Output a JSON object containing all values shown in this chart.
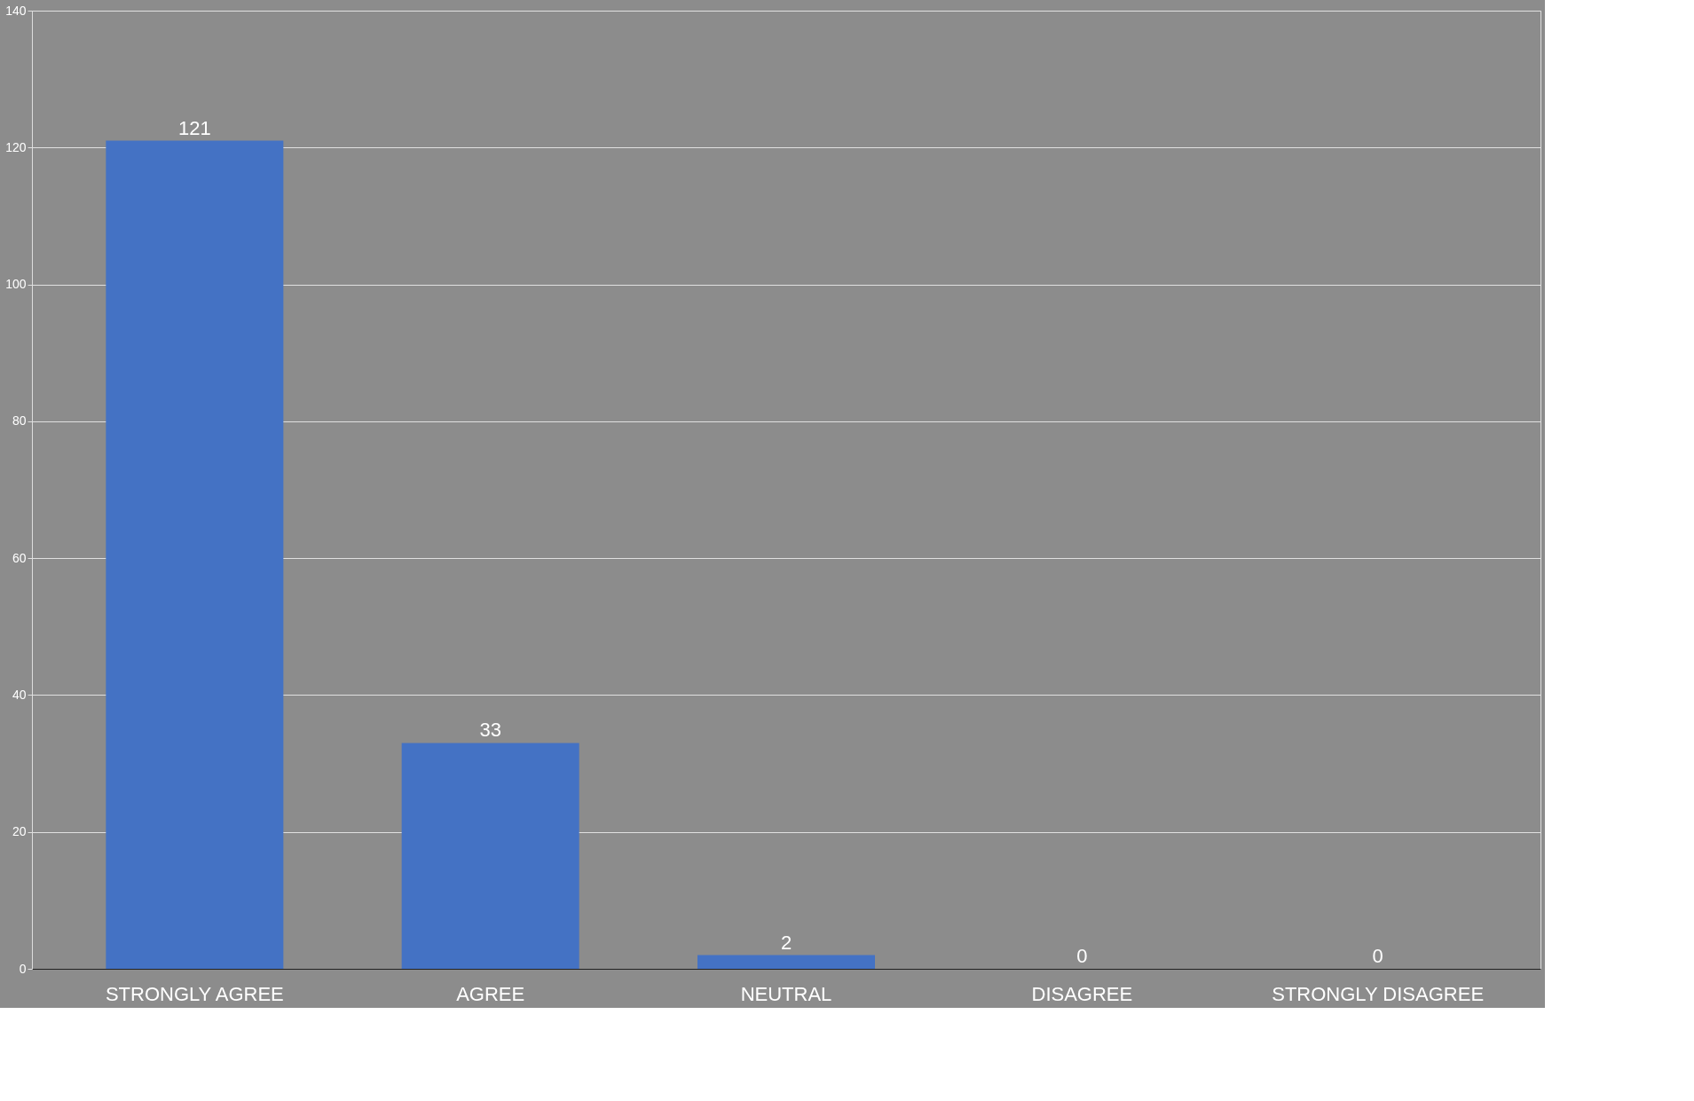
{
  "chart_data": {
    "type": "bar",
    "categories": [
      "STRONGLY AGREE",
      "AGREE",
      "NEUTRAL",
      "DISAGREE",
      "STRONGLY DISAGREE"
    ],
    "values": [
      121,
      33,
      2,
      0,
      0
    ],
    "color": "#4472c4",
    "ylim": [
      0,
      140
    ],
    "yticks": [
      0,
      20,
      40,
      60,
      80,
      100,
      120,
      140
    ],
    "grid": "y",
    "data_labels": true
  }
}
